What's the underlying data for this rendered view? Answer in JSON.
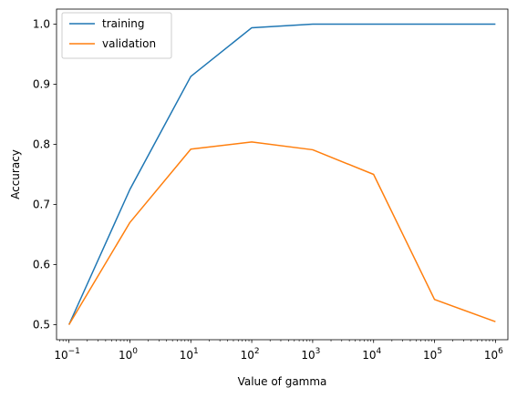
{
  "chart_data": {
    "type": "line",
    "xlabel": "Value of gamma",
    "ylabel": "Accuracy",
    "x_scale": "log",
    "x": [
      0.1,
      1,
      10,
      100,
      1000,
      10000,
      100000,
      1000000
    ],
    "xlim": [
      0.0625,
      1600000
    ],
    "ylim": [
      0.475,
      1.025
    ],
    "x_ticks": [
      {
        "value": 0.1,
        "base": "10",
        "exp": "−1"
      },
      {
        "value": 1,
        "base": "10",
        "exp": "0"
      },
      {
        "value": 10,
        "base": "10",
        "exp": "1"
      },
      {
        "value": 100,
        "base": "10",
        "exp": "2"
      },
      {
        "value": 1000,
        "base": "10",
        "exp": "3"
      },
      {
        "value": 10000,
        "base": "10",
        "exp": "4"
      },
      {
        "value": 100000,
        "base": "10",
        "exp": "5"
      },
      {
        "value": 1000000,
        "base": "10",
        "exp": "6"
      }
    ],
    "y_ticks": [
      {
        "value": 0.5,
        "label": "0.5"
      },
      {
        "value": 0.6,
        "label": "0.6"
      },
      {
        "value": 0.7,
        "label": "0.7"
      },
      {
        "value": 0.8,
        "label": "0.8"
      },
      {
        "value": 0.9,
        "label": "0.9"
      },
      {
        "value": 1.0,
        "label": "1.0"
      }
    ],
    "series": [
      {
        "name": "training",
        "color": "#1f77b4",
        "values": [
          0.5,
          0.725,
          0.913,
          0.994,
          1.0,
          1.0,
          1.0,
          1.0
        ]
      },
      {
        "name": "validation",
        "color": "#ff7f0e",
        "values": [
          0.5,
          0.67,
          0.792,
          0.804,
          0.791,
          0.75,
          0.542,
          0.505
        ]
      }
    ],
    "legend": "top-left",
    "grid": false
  }
}
